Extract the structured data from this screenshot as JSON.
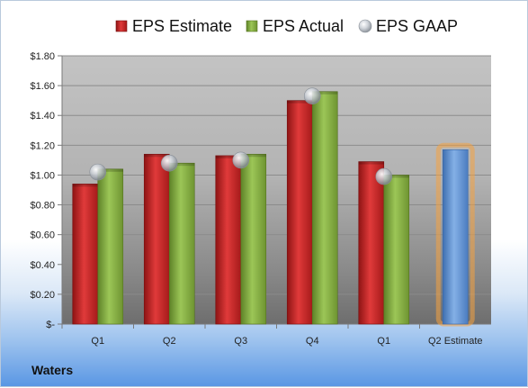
{
  "chart_data": {
    "type": "bar",
    "categories": [
      "Q1",
      "Q2",
      "Q3",
      "Q4",
      "Q1",
      "Q2 Estimate"
    ],
    "series": [
      {
        "name": "EPS Estimate",
        "color": "#d42a2a",
        "values": [
          0.94,
          1.14,
          1.13,
          1.5,
          1.09,
          null
        ]
      },
      {
        "name": "EPS Actual",
        "color": "#8fb844",
        "values": [
          1.04,
          1.08,
          1.14,
          1.56,
          1.0,
          null
        ]
      },
      {
        "name": "EPS GAAP",
        "color": "#b8bec6",
        "marker": "circle",
        "values": [
          1.02,
          1.08,
          1.1,
          1.53,
          0.99,
          null
        ]
      }
    ],
    "projection": {
      "category": "Q2 Estimate",
      "value": 1.17,
      "color": "#6a9ad8",
      "glow": "#f5a340"
    },
    "yticks": [
      "$-",
      "$0.20",
      "$0.40",
      "$0.60",
      "$0.80",
      "$1.00",
      "$1.20",
      "$1.40",
      "$1.60",
      "$1.80"
    ],
    "ylim": [
      0,
      1.8
    ],
    "grid": true,
    "legend_position": "top"
  },
  "company": "Waters"
}
